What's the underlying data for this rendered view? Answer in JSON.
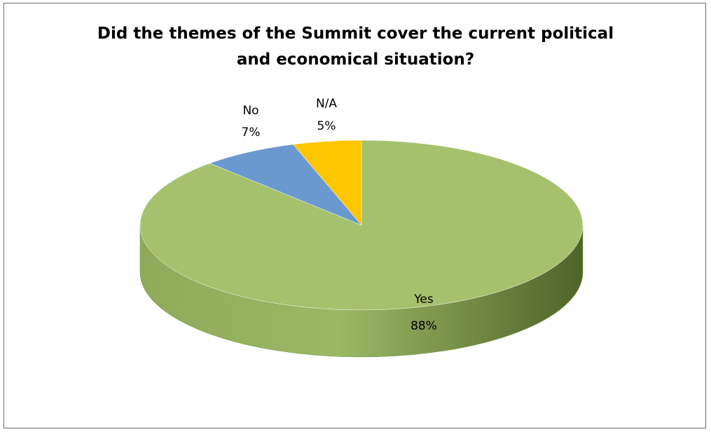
{
  "chart_data": {
    "type": "pie",
    "title": [
      "Did the themes of the Summit cover the current political",
      "and economical situation?"
    ],
    "categories": [
      "Yes",
      "No",
      "N/A"
    ],
    "values": [
      88,
      7,
      5
    ],
    "labels": [
      "88%",
      "7%",
      "5%"
    ],
    "colors": {
      "Yes": "#a5c16e",
      "No": "#6a99cf",
      "N/A": "#fdc600"
    },
    "legend": "none",
    "three_d": true
  }
}
